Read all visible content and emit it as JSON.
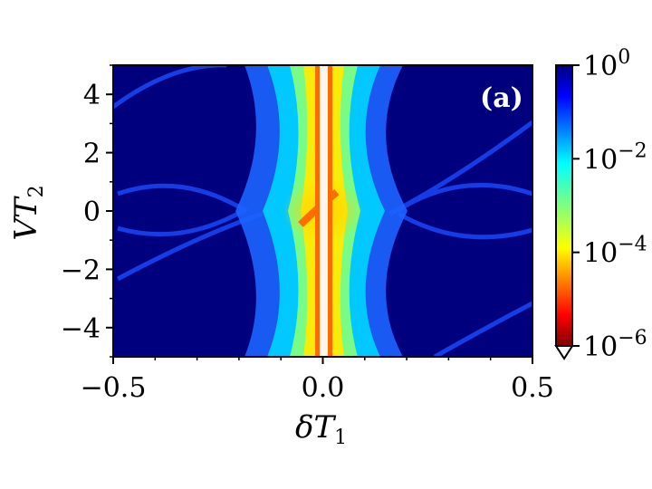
{
  "chart_data": {
    "type": "heatmap",
    "title": "",
    "panel_label": "(a)",
    "xlabel": "δT",
    "xlabel_subscript": "1",
    "ylabel": "VT",
    "ylabel_subscript": "2",
    "xlim": [
      -0.5,
      0.5
    ],
    "ylim": [
      -5,
      5
    ],
    "x_ticks": [
      -0.5,
      0.0,
      0.5
    ],
    "x_tick_labels": [
      "−0.5",
      "0.0",
      "0.5"
    ],
    "y_ticks": [
      -4,
      -2,
      0,
      2,
      4
    ],
    "y_tick_labels": [
      "−4",
      "−2",
      "0",
      "2",
      "4"
    ],
    "colormap": "jet",
    "color_scale": "log",
    "colorbar": {
      "range": [
        1e-06,
        1
      ],
      "ticks": [
        {
          "value": 1,
          "base": "10",
          "exp": "0"
        },
        {
          "value": 0.01,
          "base": "10",
          "exp": "−2"
        },
        {
          "value": 0.0001,
          "base": "10",
          "exp": "−4"
        },
        {
          "value": 1e-06,
          "base": "10",
          "exp": "−6"
        }
      ],
      "extend": "min"
    },
    "features": {
      "central_low_line_x": 0.0,
      "background_level": 1.0,
      "description_values": "high (dark blue) background, low values near δT1=0 with minimum at the centre line"
    }
  }
}
